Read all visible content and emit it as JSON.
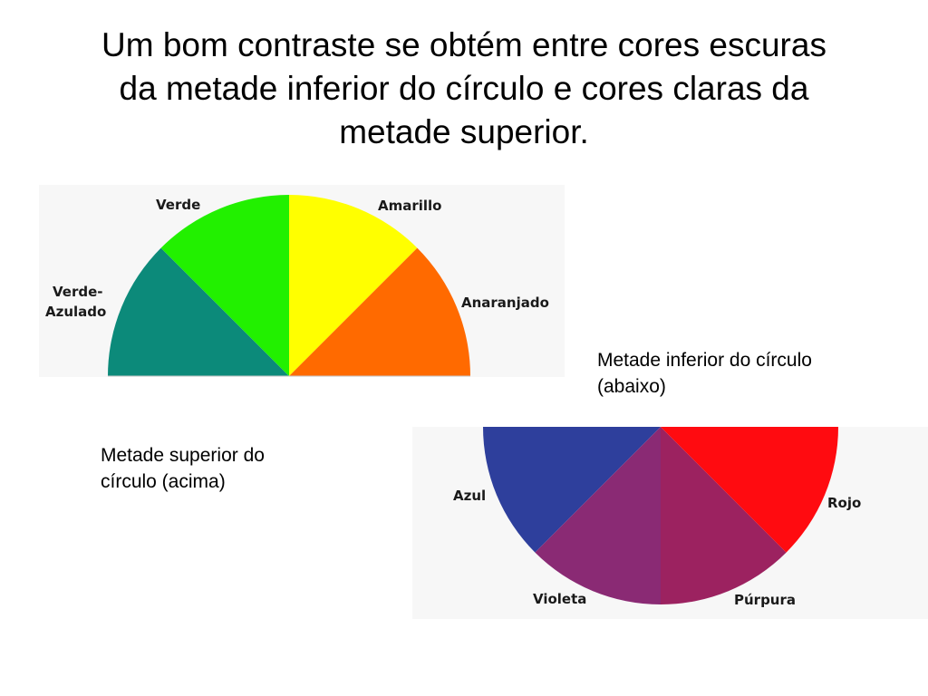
{
  "title": {
    "line1": "Um bom contraste se obtém entre cores escuras",
    "line2": "da metade inferior do círculo e cores claras da",
    "line3": "metade superior."
  },
  "captions": {
    "lower_half": [
      "Metade inferior do círculo",
      "(abaixo)"
    ],
    "upper_half": [
      "Metade superior do",
      "círculo (acima)"
    ]
  },
  "upper_wheel": {
    "labels": {
      "verde": "Verde",
      "amarillo": "Amarillo",
      "verde_azulado_1": "Verde-",
      "verde_azulado_2": "Azulado",
      "anaranjado": "Anaranjado"
    },
    "colors": {
      "verde_azulado": "#0c8a7a",
      "verde": "#22f000",
      "amarillo": "#ffff00",
      "anaranjado": "#ff6a00"
    }
  },
  "lower_wheel": {
    "labels": {
      "azul": "Azul",
      "rojo": "Rojo",
      "violeta": "Violeta",
      "purpura": "Púrpura"
    },
    "colors": {
      "azul": "#2e3f9c",
      "rojo": "#ff0b10",
      "violeta": "#8a2a74",
      "purpura": "#9c2260"
    }
  }
}
